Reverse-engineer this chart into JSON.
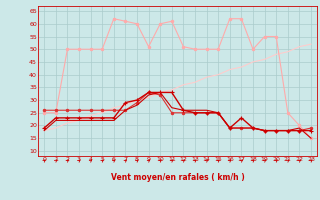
{
  "x": [
    0,
    1,
    2,
    3,
    4,
    5,
    6,
    7,
    8,
    9,
    10,
    11,
    12,
    13,
    14,
    15,
    16,
    17,
    18,
    19,
    20,
    21,
    22,
    23
  ],
  "series_diagonal": [
    18,
    19,
    21,
    22,
    24,
    25,
    27,
    28,
    30,
    31,
    33,
    34,
    36,
    37,
    39,
    40,
    42,
    43,
    45,
    46,
    48,
    49,
    51,
    52
  ],
  "series_rafales_high": [
    25,
    25,
    50,
    50,
    50,
    50,
    62,
    61,
    60,
    51,
    60,
    61,
    51,
    50,
    50,
    50,
    62,
    62,
    50,
    55,
    55,
    25,
    20,
    15
  ],
  "series_moyen1": [
    19,
    23,
    23,
    23,
    23,
    23,
    23,
    29,
    30,
    33,
    33,
    33,
    26,
    25,
    25,
    25,
    19,
    23,
    19,
    18,
    18,
    18,
    18,
    18
  ],
  "series_moyen2": [
    26,
    26,
    26,
    26,
    26,
    26,
    26,
    26,
    29,
    33,
    32,
    25,
    25,
    25,
    25,
    25,
    19,
    19,
    19,
    18,
    18,
    18,
    18,
    19
  ],
  "series_moyen3": [
    18,
    22,
    22,
    22,
    22,
    22,
    22,
    26,
    28,
    32,
    33,
    27,
    26,
    26,
    26,
    25,
    19,
    19,
    19,
    18,
    18,
    18,
    19,
    15
  ],
  "bg_color": "#cce8e8",
  "grid_color": "#aacccc",
  "color_dark": "#cc0000",
  "color_medium": "#dd3333",
  "color_light": "#ffaaaa",
  "color_vlight": "#ffcccc",
  "ylabel_ticks": [
    10,
    15,
    20,
    25,
    30,
    35,
    40,
    45,
    50,
    55,
    60,
    65
  ],
  "xlabel": "Vent moyen/en rafales ( km/h )",
  "ylim": [
    8,
    67
  ],
  "xlim": [
    -0.5,
    23.5
  ]
}
